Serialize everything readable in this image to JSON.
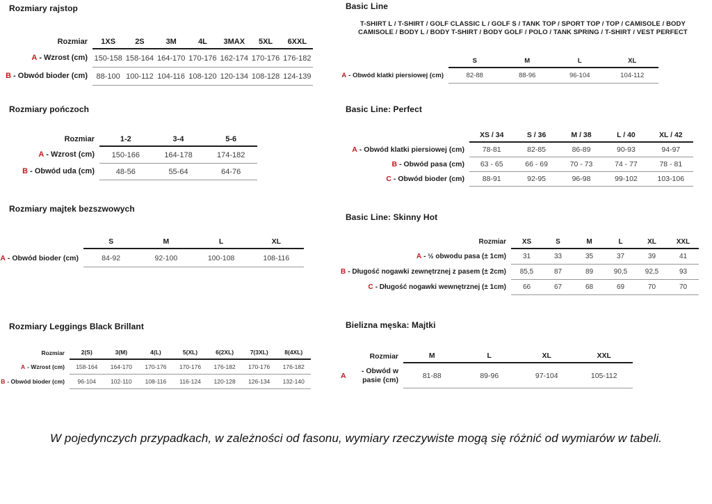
{
  "colors": {
    "accent_red": "#c1191f",
    "rule_dark": "#1d1d1d",
    "rule_light": "#979797"
  },
  "basic_line_products": {
    "line1": "T-SHIRT L / T-SHIRT / GOLF CLASSIC L / GOLF S / TANK TOP / SPORT TOP / TOP / CAMISOLE / BODY",
    "line2": "CAMISOLE / BODY L / BODY T-SHIRT / BODY GOLF / POLO / TANK SPRING / T-SHIRT / VEST PERFECT"
  },
  "tables": {
    "rajstopy": {
      "title": "Rozmiary rajstop",
      "size_label": "Rozmiar",
      "columns": [
        "1XS",
        "2S",
        "3M",
        "4L",
        "3MAX",
        "5XL",
        "6XXL"
      ],
      "rows": [
        {
          "letter": "A",
          "label": "- Wzrost (cm)",
          "values": [
            "150-158",
            "158-164",
            "164-170",
            "170-176",
            "162-174",
            "170-176",
            "176-182"
          ]
        },
        {
          "letter": "B",
          "label": "- Obwód bioder (cm)",
          "values": [
            "88-100",
            "100-112",
            "104-116",
            "108-120",
            "120-134",
            "108-128",
            "124-139"
          ]
        }
      ]
    },
    "ponczochy": {
      "title": "Rozmiary pończoch",
      "size_label": "Rozmiar",
      "columns": [
        "1-2",
        "3-4",
        "5-6"
      ],
      "rows": [
        {
          "letter": "A",
          "label": "- Wzrost (cm)",
          "values": [
            "150-166",
            "164-178",
            "174-182"
          ]
        },
        {
          "letter": "B",
          "label": "- Obwód uda (cm)",
          "values": [
            "48-56",
            "55-64",
            "64-76"
          ]
        }
      ]
    },
    "majtki_bezszwowe": {
      "title": "Rozmiary majtek bezszwowych",
      "size_label": "",
      "columns": [
        "S",
        "M",
        "L",
        "XL"
      ],
      "rows": [
        {
          "letter": "A",
          "label": "- Obwód bioder (cm)",
          "values": [
            "84-92",
            "92-100",
            "100-108",
            "108-116"
          ]
        }
      ]
    },
    "leggings": {
      "title": "Rozmiary Leggings Black Brillant",
      "size_label": "Rozmiar",
      "columns": [
        "2(S)",
        "3(M)",
        "4(L)",
        "5(XL)",
        "6(2XL)",
        "7(3XL)",
        "8(4XL)"
      ],
      "rows": [
        {
          "letter": "A",
          "label": "- Wzrost (cm)",
          "values": [
            "158-164",
            "164-170",
            "170-176",
            "170-176",
            "176-182",
            "170-176",
            "176-182"
          ]
        },
        {
          "letter": "B",
          "label": "- Obwód bioder (cm)",
          "values": [
            "96-104",
            "102-110",
            "108-116",
            "116-124",
            "120-128",
            "126-134",
            "132-140"
          ]
        }
      ]
    },
    "basic_line": {
      "title": "Basic Line",
      "size_label": "",
      "columns": [
        "S",
        "M",
        "L",
        "XL"
      ],
      "rows": [
        {
          "letter": "A",
          "label": "- Obwód klatki piersiowej (cm)",
          "values": [
            "82-88",
            "88-96",
            "96-104",
            "104-112"
          ]
        }
      ]
    },
    "perfect": {
      "title": "Basic Line: Perfect",
      "size_label": "",
      "columns": [
        "XS / 34",
        "S / 36",
        "M / 38",
        "L / 40",
        "XL / 42"
      ],
      "rows": [
        {
          "letter": "A",
          "label": "- Obwód klatki piersiowej (cm)",
          "values": [
            "78-81",
            "82-85",
            "86-89",
            "90-93",
            "94-97"
          ]
        },
        {
          "letter": "B",
          "label": "- Obwód pasa (cm)",
          "values": [
            "63 - 65",
            "66 - 69",
            "70 - 73",
            "74 - 77",
            "78 - 81"
          ]
        },
        {
          "letter": "C",
          "label": "- Obwód bioder (cm)",
          "values": [
            "88-91",
            "92-95",
            "96-98",
            "99-102",
            "103-106"
          ]
        }
      ]
    },
    "skinny_hot": {
      "title": "Basic Line: Skinny Hot",
      "size_label": "Rozmiar",
      "columns": [
        "XS",
        "S",
        "M",
        "L",
        "XL",
        "XXL"
      ],
      "rows": [
        {
          "letter": "A",
          "label": "- ½ obwodu pasa (± 1cm)",
          "values": [
            "31",
            "33",
            "35",
            "37",
            "39",
            "41"
          ]
        },
        {
          "letter": "B",
          "label": "- Długość nogawki zewnętrznej z pasem (± 2cm)",
          "values": [
            "85,5",
            "87",
            "89",
            "90,5",
            "92,5",
            "93"
          ]
        },
        {
          "letter": "C",
          "label": "- Długość nogawki wewnętrznej (± 1cm)",
          "values": [
            "66",
            "67",
            "68",
            "69",
            "70",
            "70"
          ]
        }
      ]
    },
    "majtki_meskie": {
      "title": "Bielizna męska: Majtki",
      "size_label": "Rozmiar",
      "columns": [
        "M",
        "L",
        "XL",
        "XXL"
      ],
      "rows": [
        {
          "letter": "A",
          "label": "- Obwód w pasie (cm)",
          "values": [
            "81-88",
            "89-96",
            "97-104",
            "105-112"
          ]
        }
      ]
    }
  },
  "footnote": "W pojedynczych przypadkach, w zależności od fasonu, wymiary rzeczywiste mogą się różnić od wymiarów w tabeli."
}
